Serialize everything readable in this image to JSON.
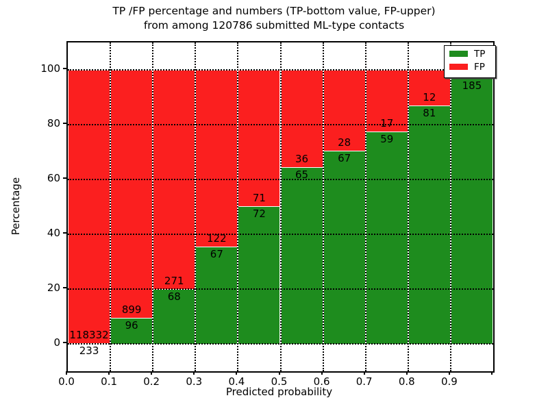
{
  "figure": {
    "title_line1": "TP /FP percentage and numbers (TP-bottom value, FP-upper)",
    "title_line2": "from among 120786 submitted ML-type contacts",
    "xlabel": "Predicted probability",
    "ylabel": "Percentage"
  },
  "colors": {
    "tp_green": "#1e8c1e",
    "fp_red": "#fb1f1f",
    "axis": "#000000",
    "background": "#ffffff"
  },
  "legend": {
    "position": "upper right",
    "items": [
      {
        "label": "TP",
        "color": "#1e8c1e"
      },
      {
        "label": "FP",
        "color": "#fb1f1f"
      }
    ]
  },
  "axes": {
    "yticks": [
      "0",
      "20",
      "40",
      "60",
      "80",
      "100"
    ],
    "xticks": [
      "0.0",
      "0.1",
      "0.2",
      "0.3",
      "0.4",
      "0.5",
      "0.6",
      "0.7",
      "0.8",
      "0.9"
    ]
  },
  "chart_data": {
    "type": "bar",
    "stacked": true,
    "title": "TP /FP percentage and numbers (TP-bottom value, FP-upper)\nfrom among 120786 submitted ML-type contacts",
    "xlabel": "Predicted probability",
    "ylabel": "Percentage",
    "xlim": [
      0.0,
      1.0
    ],
    "ylim": [
      -10,
      110
    ],
    "grid": true,
    "legend_position": "upper right",
    "bin_width": 0.1,
    "categories": [
      "0.0-0.1",
      "0.1-0.2",
      "0.2-0.3",
      "0.3-0.4",
      "0.4-0.5",
      "0.5-0.6",
      "0.6-0.7",
      "0.7-0.8",
      "0.8-0.9",
      "0.9-1.0"
    ],
    "series": [
      {
        "name": "TP",
        "color": "#1e8c1e",
        "counts": [
          233,
          96,
          68,
          67,
          72,
          65,
          67,
          59,
          81,
          185
        ],
        "percent": [
          0.2,
          9.6,
          20.1,
          35.4,
          50.3,
          64.4,
          70.5,
          77.6,
          87.1,
          96.9
        ]
      },
      {
        "name": "FP",
        "color": "#fb1f1f",
        "counts": [
          118332,
          899,
          271,
          122,
          71,
          36,
          28,
          17,
          12,
          null
        ],
        "percent": [
          99.8,
          90.4,
          79.9,
          64.6,
          49.7,
          35.6,
          29.5,
          22.4,
          12.9,
          3.1
        ]
      }
    ],
    "bar_labels": {
      "fp": [
        "118332",
        "899",
        "271",
        "122",
        "71",
        "36",
        "28",
        "17",
        "12",
        ""
      ],
      "tp": [
        "233",
        "96",
        "68",
        "67",
        "72",
        "65",
        "67",
        "59",
        "81",
        "185"
      ]
    }
  }
}
